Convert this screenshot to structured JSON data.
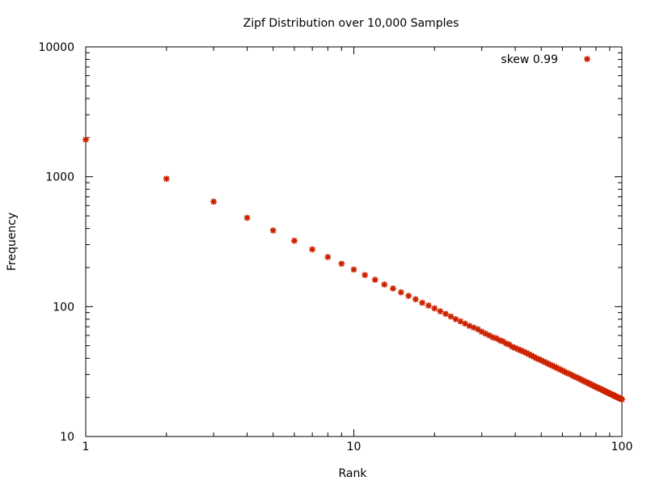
{
  "chart_data": {
    "type": "scatter",
    "title": "Zipf Distribution over 10,000 Samples",
    "xlabel": "Rank",
    "ylabel": "Frequency",
    "xscale": "log",
    "yscale": "log",
    "xlim": [
      1,
      100
    ],
    "ylim": [
      10,
      10000
    ],
    "x_ticks": [
      1,
      10,
      100
    ],
    "x_tick_labels": [
      "1",
      "10",
      "100"
    ],
    "y_ticks": [
      10,
      100,
      1000,
      10000
    ],
    "y_tick_labels": [
      "10",
      "100",
      "1000",
      "10000"
    ],
    "grid": false,
    "legend_position": "top-right",
    "series": [
      {
        "name": "skew 0.99",
        "color": "#cc2200",
        "marker": "star",
        "points": [
          [
            1,
            1930
          ],
          [
            2,
            965
          ],
          [
            3,
            643
          ],
          [
            4,
            483
          ],
          [
            5,
            386
          ],
          [
            6,
            322
          ],
          [
            7,
            276
          ],
          [
            8,
            241
          ],
          [
            9,
            214
          ],
          [
            10,
            193
          ],
          [
            11,
            175
          ],
          [
            12,
            161
          ],
          [
            13,
            148
          ],
          [
            14,
            138
          ],
          [
            15,
            129
          ],
          [
            16,
            121
          ],
          [
            17,
            114
          ],
          [
            18,
            107
          ],
          [
            19,
            102
          ],
          [
            20,
            97
          ],
          [
            21,
            92
          ],
          [
            22,
            88
          ],
          [
            23,
            84
          ],
          [
            24,
            80
          ],
          [
            25,
            77
          ],
          [
            26,
            74
          ],
          [
            27,
            71
          ],
          [
            28,
            69
          ],
          [
            29,
            67
          ],
          [
            30,
            64
          ],
          [
            31,
            62
          ],
          [
            32,
            60
          ],
          [
            33,
            58
          ],
          [
            34,
            57
          ],
          [
            35,
            55
          ],
          [
            36,
            54
          ],
          [
            37,
            52
          ],
          [
            38,
            51
          ],
          [
            39,
            49
          ],
          [
            40,
            48
          ],
          [
            41,
            47
          ],
          [
            42,
            46
          ],
          [
            43,
            45
          ],
          [
            44,
            44
          ],
          [
            45,
            43
          ],
          [
            46,
            42
          ],
          [
            47,
            41
          ],
          [
            48,
            40
          ],
          [
            49,
            39.4
          ],
          [
            50,
            38.6
          ],
          [
            51,
            37.8
          ],
          [
            52,
            37.1
          ],
          [
            53,
            36.4
          ],
          [
            54,
            35.7
          ],
          [
            55,
            35.1
          ],
          [
            56,
            34.5
          ],
          [
            57,
            33.9
          ],
          [
            58,
            33.3
          ],
          [
            59,
            32.7
          ],
          [
            60,
            32.2
          ],
          [
            61,
            31.6
          ],
          [
            62,
            31.1
          ],
          [
            63,
            30.6
          ],
          [
            64,
            30.2
          ],
          [
            65,
            29.7
          ],
          [
            66,
            29.2
          ],
          [
            67,
            28.8
          ],
          [
            68,
            28.4
          ],
          [
            69,
            28.0
          ],
          [
            70,
            27.6
          ],
          [
            71,
            27.2
          ],
          [
            72,
            26.8
          ],
          [
            73,
            26.4
          ],
          [
            74,
            26.1
          ],
          [
            75,
            25.7
          ],
          [
            76,
            25.4
          ],
          [
            77,
            25.1
          ],
          [
            78,
            24.7
          ],
          [
            79,
            24.4
          ],
          [
            80,
            24.1
          ],
          [
            81,
            23.8
          ],
          [
            82,
            23.5
          ],
          [
            83,
            23.3
          ],
          [
            84,
            23.0
          ],
          [
            85,
            22.7
          ],
          [
            86,
            22.4
          ],
          [
            87,
            22.2
          ],
          [
            88,
            21.9
          ],
          [
            89,
            21.7
          ],
          [
            90,
            21.4
          ],
          [
            91,
            21.2
          ],
          [
            92,
            21.0
          ],
          [
            93,
            20.8
          ],
          [
            94,
            20.5
          ],
          [
            95,
            20.3
          ],
          [
            96,
            20.1
          ],
          [
            97,
            19.9
          ],
          [
            98,
            19.7
          ],
          [
            99,
            19.5
          ],
          [
            100,
            19.3
          ]
        ]
      }
    ]
  }
}
